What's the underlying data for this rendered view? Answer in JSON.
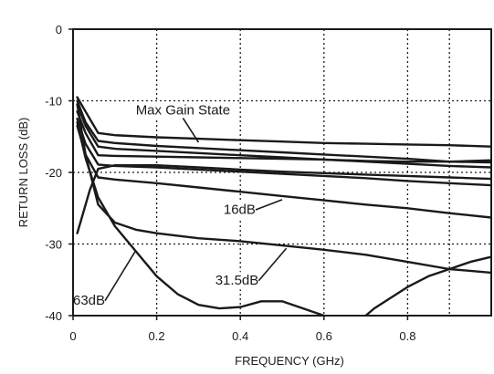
{
  "chart_data": {
    "type": "line",
    "xlabel": "FREQUENCY (GHz)",
    "ylabel": "RETURN LOSS (dB)",
    "xlim": [
      0,
      1.0
    ],
    "ylim": [
      -40,
      0
    ],
    "x_ticks": [
      0,
      0.2,
      0.4,
      0.6,
      0.8
    ],
    "x_tick_labels": [
      "0",
      "0.2",
      "0.4",
      "0.6",
      "0.8"
    ],
    "y_ticks": [
      0,
      -10,
      -20,
      -30,
      -40
    ],
    "y_tick_labels": [
      "0",
      "-10",
      "-20",
      "-30",
      "-40"
    ],
    "grid": true,
    "grid_style": "dotted",
    "line_color": "#1a1a1a",
    "annotations": [
      {
        "text": "Max Gain State",
        "x": 0.15,
        "y": -11.9,
        "arrow_to": {
          "x": 0.3,
          "y": -15.8
        }
      },
      {
        "text": "16dB",
        "x": 0.36,
        "y": -25.8,
        "arrow_to": {
          "x": 0.5,
          "y": -23.8
        }
      },
      {
        "text": "31.5dB",
        "x": 0.34,
        "y": -35.7,
        "arrow_to": {
          "x": 0.51,
          "y": -30.6
        }
      },
      {
        "text": "63dB",
        "x": 0.0,
        "y": -38.5,
        "arrow_to": {
          "x": 0.15,
          "y": -30.9
        }
      }
    ],
    "series": [
      {
        "x": [
          0.01,
          0.03,
          0.06,
          0.1,
          0.2,
          0.3,
          0.4,
          0.5,
          0.6,
          0.7,
          0.8,
          0.9,
          1.0
        ],
        "y": [
          -9.5,
          -11.5,
          -14.5,
          -14.8,
          -15.1,
          -15.3,
          -15.5,
          -15.7,
          -15.9,
          -16.0,
          -16.1,
          -16.2,
          -16.4
        ]
      },
      {
        "x": [
          0.01,
          0.03,
          0.06,
          0.1,
          0.2,
          0.3,
          0.4,
          0.5,
          0.6,
          0.7,
          0.8,
          0.9,
          1.0
        ],
        "y": [
          -10.0,
          -13.0,
          -15.6,
          -15.9,
          -16.3,
          -16.6,
          -16.9,
          -17.2,
          -17.5,
          -17.8,
          -18.1,
          -18.5,
          -18.6
        ]
      },
      {
        "x": [
          0.01,
          0.03,
          0.06,
          0.1,
          0.2,
          0.3,
          0.4,
          0.5,
          0.6,
          0.7,
          0.8,
          0.9,
          1.0
        ],
        "y": [
          -10.5,
          -13.5,
          -16.4,
          -16.7,
          -17.0,
          -17.3,
          -17.6,
          -17.9,
          -18.2,
          -18.5,
          -18.8,
          -19.1,
          -19.3
        ]
      },
      {
        "x": [
          0.01,
          0.03,
          0.06,
          0.1,
          0.2,
          0.3,
          0.4,
          0.5,
          0.6,
          0.7,
          0.8,
          0.9,
          1.0
        ],
        "y": [
          -11.5,
          -14.5,
          -17.6,
          -17.7,
          -17.8,
          -17.9,
          -18.0,
          -18.1,
          -18.2,
          -18.4,
          -18.5,
          -18.5,
          -18.3
        ]
      },
      {
        "x": [
          0.01,
          0.03,
          0.06,
          0.1,
          0.2,
          0.3,
          0.4,
          0.5,
          0.6,
          0.7,
          0.8,
          0.9,
          1.0
        ],
        "y": [
          -12.5,
          -16.0,
          -18.9,
          -19.1,
          -19.3,
          -19.6,
          -19.9,
          -20.2,
          -20.5,
          -20.8,
          -21.2,
          -21.5,
          -21.8
        ]
      },
      {
        "x": [
          0.01,
          0.03,
          0.06,
          0.1,
          0.2,
          0.3,
          0.4,
          0.5,
          0.6,
          0.7,
          0.8,
          0.9,
          1.0
        ],
        "y": [
          -13.5,
          -17.5,
          -20.7,
          -21.0,
          -21.5,
          -22.1,
          -22.7,
          -23.3,
          -23.9,
          -24.5,
          -25.0,
          -25.7,
          -26.3
        ]
      },
      {
        "x": [
          0.01,
          0.02,
          0.04,
          0.06,
          0.1,
          0.2,
          0.3,
          0.4,
          0.5,
          0.6,
          0.7,
          0.8,
          0.9,
          1.0
        ],
        "y": [
          -28.5,
          -26.5,
          -22.5,
          -19.5,
          -19.0,
          -19.0,
          -19.3,
          -19.6,
          -19.9,
          -20.1,
          -20.3,
          -20.5,
          -20.7,
          -20.9
        ]
      },
      {
        "x": [
          0.01,
          0.03,
          0.06,
          0.1,
          0.15,
          0.2,
          0.3,
          0.4,
          0.5,
          0.55,
          0.6,
          0.7,
          0.8,
          0.9,
          1.0
        ],
        "y": [
          -10.5,
          -17.5,
          -24.5,
          -27.0,
          -28.0,
          -28.5,
          -29.2,
          -29.6,
          -30.2,
          -30.5,
          -30.8,
          -31.5,
          -32.5,
          -33.5,
          -34.0
        ]
      },
      {
        "x": [
          0.01,
          0.03,
          0.06,
          0.1,
          0.15,
          0.2,
          0.25,
          0.3,
          0.35,
          0.4,
          0.45,
          0.5,
          0.55,
          0.6,
          0.63
        ],
        "y": [
          -13.0,
          -18.0,
          -23.5,
          -27.5,
          -31.0,
          -34.5,
          -37.0,
          -38.5,
          -39.0,
          -38.8,
          -38.0,
          -38.0,
          -39.0,
          -40.0,
          -40.5
        ]
      },
      {
        "x": [
          0.69,
          0.72,
          0.76,
          0.8,
          0.85,
          0.9,
          0.95,
          1.0
        ],
        "y": [
          -40.5,
          -39.0,
          -37.5,
          -36.0,
          -34.5,
          -33.5,
          -32.5,
          -31.8
        ]
      }
    ]
  }
}
